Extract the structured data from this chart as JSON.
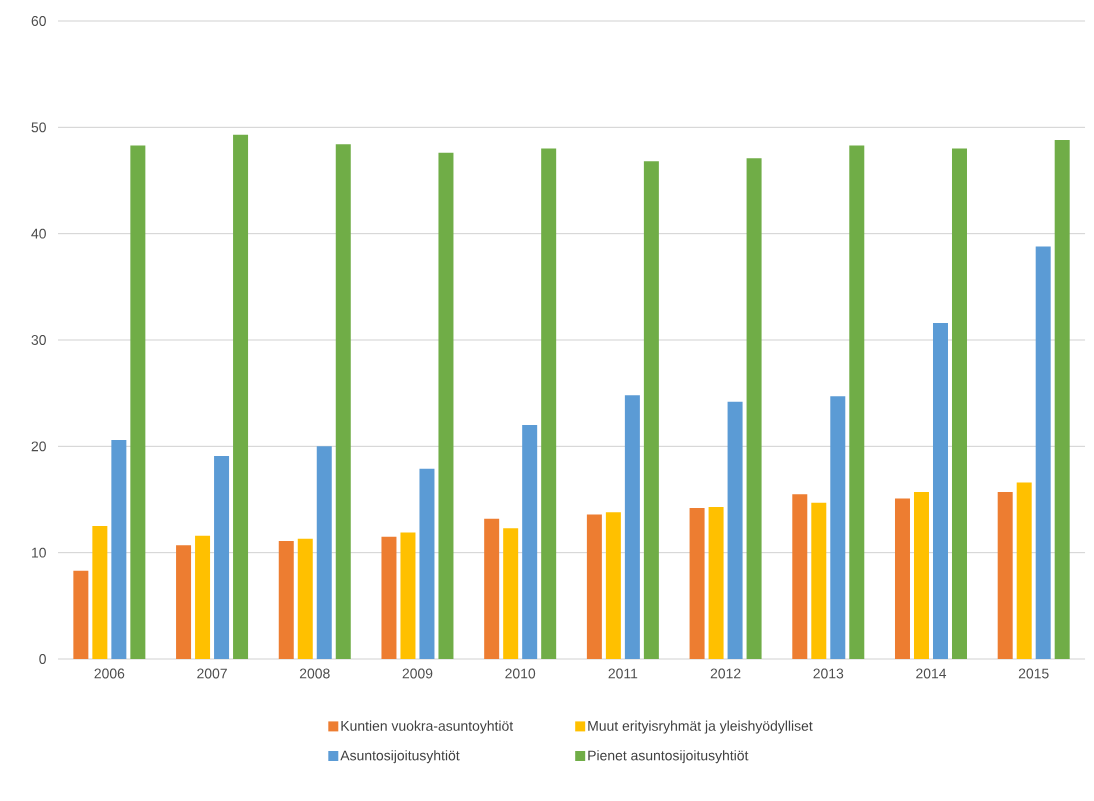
{
  "chart_data": {
    "type": "bar",
    "categories": [
      "2006",
      "2007",
      "2008",
      "2009",
      "2010",
      "2011",
      "2012",
      "2013",
      "2014",
      "2015"
    ],
    "series": [
      {
        "name": "Kuntien vuokra-asuntoyhtiöt",
        "color": "#ed7d31",
        "values": [
          8.3,
          10.7,
          11.1,
          11.5,
          13.2,
          13.6,
          14.2,
          15.5,
          15.1,
          15.7
        ]
      },
      {
        "name": "Muut erityisryhmät ja yleishyödylliset",
        "color": "#ffc000",
        "values": [
          12.5,
          11.6,
          11.3,
          11.9,
          12.3,
          13.8,
          14.3,
          14.7,
          15.7,
          16.6
        ]
      },
      {
        "name": "Asuntosijoitusyhtiöt",
        "color": "#5b9bd5",
        "values": [
          20.6,
          19.1,
          20.0,
          17.9,
          22.0,
          24.8,
          24.2,
          24.7,
          31.6,
          38.8
        ]
      },
      {
        "name": "Pienet asuntosijoitusyhtiöt",
        "color": "#70ad47",
        "values": [
          48.3,
          49.3,
          48.4,
          47.6,
          48.0,
          46.8,
          47.1,
          48.3,
          48.0,
          48.8
        ]
      }
    ],
    "ylim": [
      0,
      60
    ],
    "yticks": [
      0,
      10,
      20,
      30,
      40,
      50,
      60
    ],
    "grid": "y",
    "legend": "bottom"
  }
}
